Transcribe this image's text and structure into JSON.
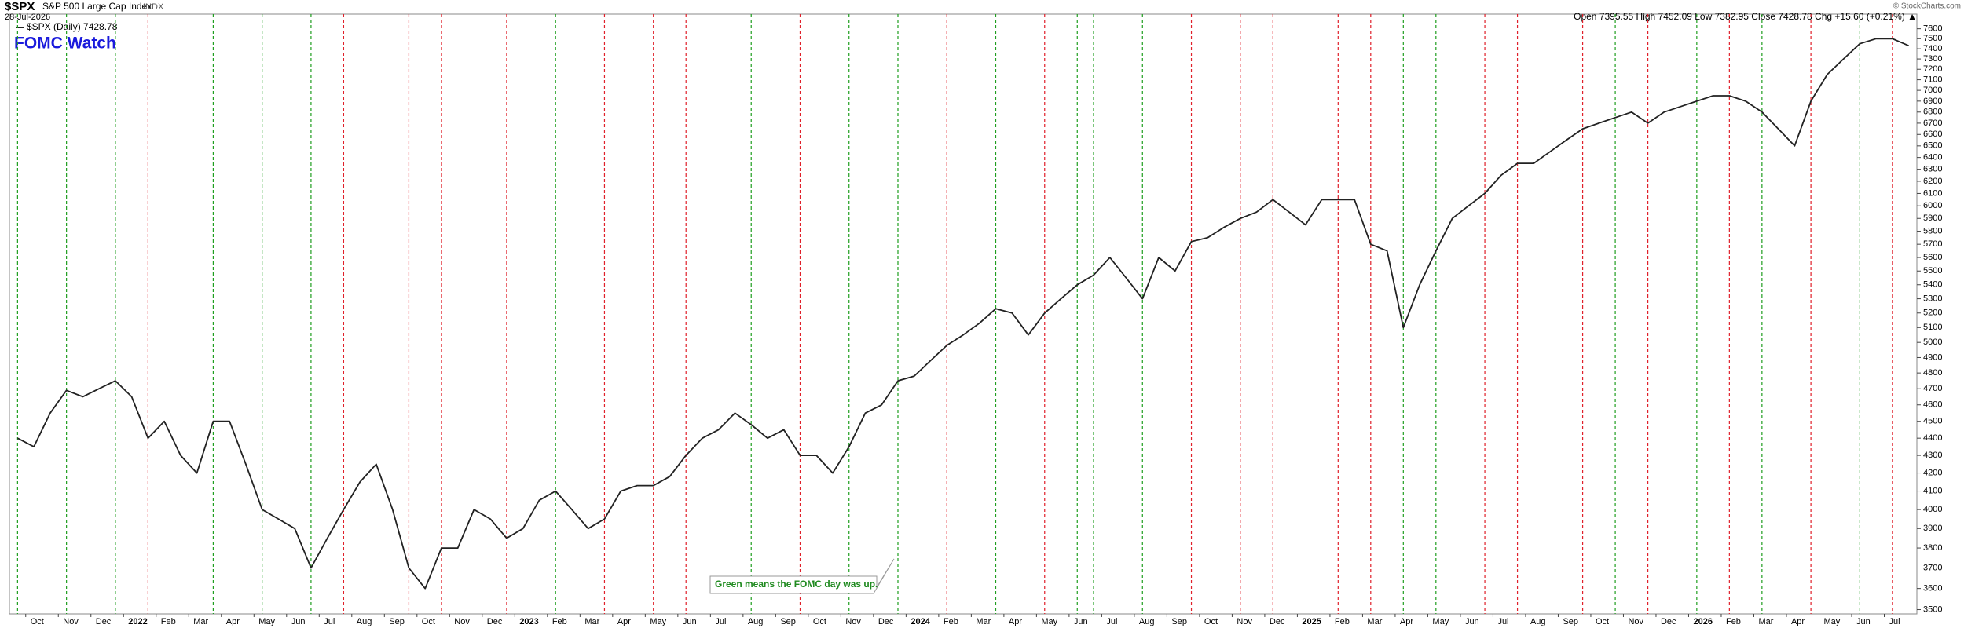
{
  "chart_data": {
    "type": "line",
    "symbol": "$SPX",
    "title": "S&P 500 Large Cap Index",
    "exchange": "INDX",
    "date": "28-Jul-2026",
    "quote": "Open 7395.55 High 7452.09 Low 7382.95 Close 7428.78 Chg +15.60 (+0.21%) ▲",
    "credit": "© StockCharts.com",
    "annotation": "FOMC Watch",
    "note": "Green means the FOMC day was up.",
    "log_scale": true,
    "categories": [
      null,
      "Oct",
      null,
      "Nov",
      null,
      "Dec",
      null,
      "2022",
      null,
      "Feb",
      null,
      "Mar",
      null,
      "Apr",
      null,
      "May",
      null,
      "Jun",
      null,
      "Jul",
      null,
      "Aug",
      null,
      "Sep",
      null,
      "Oct",
      null,
      "Nov",
      null,
      "Dec",
      null,
      "2023",
      null,
      "Feb",
      null,
      "Mar",
      null,
      "Apr",
      null,
      "May",
      null,
      "Jun",
      null,
      "Jul",
      null,
      "Aug",
      null,
      "Sep",
      null,
      "Oct",
      null,
      "Nov",
      null,
      "Dec",
      null,
      "2024",
      null,
      "Feb",
      null,
      "Mar",
      null,
      "Apr",
      null,
      "May",
      null,
      "Jun",
      null,
      "Jul",
      null,
      "Aug",
      null,
      "Sep",
      null,
      "Oct",
      null,
      "Nov",
      null,
      "Dec",
      null,
      "2025",
      null,
      "Feb",
      null,
      "Mar",
      null,
      "Apr",
      null,
      "May",
      null,
      "Jun",
      null,
      "Jul",
      null,
      "Aug",
      null,
      "Sep",
      null,
      "Oct",
      null,
      "Nov",
      null,
      "Dec",
      null,
      "2026",
      null,
      "Feb",
      null,
      "Mar",
      null,
      "Apr",
      null,
      "May",
      null,
      "Jun",
      null,
      "Jul",
      null
    ],
    "series": [
      {
        "name": "$SPX (Daily) 7428.78",
        "color": "#222222",
        "values": [
          4400,
          4350,
          4550,
          4690,
          4650,
          4700,
          4750,
          4650,
          4400,
          4500,
          4300,
          4200,
          4500,
          4500,
          4250,
          4000,
          3950,
          3900,
          3700,
          3850,
          4000,
          4150,
          4250,
          4000,
          3700,
          3600,
          3800,
          3800,
          4000,
          3950,
          3850,
          3900,
          4050,
          4100,
          4000,
          3900,
          3950,
          4100,
          4130,
          4130,
          4180,
          4300,
          4400,
          4450,
          4550,
          4480,
          4400,
          4450,
          4300,
          4300,
          4200,
          4350,
          4550,
          4600,
          4750,
          4780,
          4880,
          4980,
          5050,
          5130,
          5230,
          5200,
          5050,
          5200,
          5300,
          5400,
          5470,
          5600,
          5450,
          5300,
          5600,
          5500,
          5720,
          5750,
          5830,
          5900,
          5950,
          6050,
          5950,
          5850,
          6050,
          6050,
          6050,
          5700,
          5650,
          5100,
          5400,
          5650,
          5900,
          6000,
          6100,
          6250,
          6350,
          6350,
          6450,
          6550,
          6650,
          6700,
          6750,
          6800,
          6700,
          6800,
          6850,
          6900,
          6950,
          6950,
          6900,
          6800,
          6650,
          6500,
          6900,
          7150,
          7300,
          7450,
          7500,
          7500,
          7430
        ]
      }
    ],
    "fomc_events": [
      {
        "category": 0,
        "color": "#1f9e1f"
      },
      {
        "category": 3,
        "color": "#1f9e1f"
      },
      {
        "category": 6,
        "color": "#1f9e1f"
      },
      {
        "category": 8,
        "color": "#e0202a"
      },
      {
        "category": 12,
        "color": "#1f9e1f"
      },
      {
        "category": 15,
        "color": "#1f9e1f"
      },
      {
        "category": 18,
        "color": "#1f9e1f"
      },
      {
        "category": 20,
        "color": "#e0202a"
      },
      {
        "category": 24,
        "color": "#e0202a"
      },
      {
        "category": 26,
        "color": "#e0202a"
      },
      {
        "category": 30,
        "color": "#e0202a"
      },
      {
        "category": 33,
        "color": "#1f9e1f"
      },
      {
        "category": 36,
        "color": "#e0202a"
      },
      {
        "category": 39,
        "color": "#e0202a"
      },
      {
        "category": 41,
        "color": "#e0202a"
      },
      {
        "category": 45,
        "color": "#1f9e1f"
      },
      {
        "category": 48,
        "color": "#e0202a"
      },
      {
        "category": 51,
        "color": "#1f9e1f"
      },
      {
        "category": 54,
        "color": "#1f9e1f"
      },
      {
        "category": 57,
        "color": "#e0202a"
      },
      {
        "category": 60,
        "color": "#1f9e1f"
      },
      {
        "category": 63,
        "color": "#e0202a"
      },
      {
        "category": 65,
        "color": "#1f9e1f"
      },
      {
        "category": 66,
        "color": "#1f9e1f"
      },
      {
        "category": 69,
        "color": "#1f9e1f"
      },
      {
        "category": 72,
        "color": "#e0202a"
      },
      {
        "category": 75,
        "color": "#e0202a"
      },
      {
        "category": 77,
        "color": "#e0202a"
      },
      {
        "category": 81,
        "color": "#e0202a"
      },
      {
        "category": 83,
        "color": "#e0202a"
      },
      {
        "category": 85,
        "color": "#1f9e1f"
      },
      {
        "category": 87,
        "color": "#1f9e1f"
      },
      {
        "category": 90,
        "color": "#e0202a"
      },
      {
        "category": 92,
        "color": "#e0202a"
      },
      {
        "category": 96,
        "color": "#e0202a"
      },
      {
        "category": 98,
        "color": "#1f9e1f"
      },
      {
        "category": 100,
        "color": "#e0202a"
      },
      {
        "category": 103,
        "color": "#1f9e1f"
      },
      {
        "category": 105,
        "color": "#e0202a"
      },
      {
        "category": 107,
        "color": "#1f9e1f"
      },
      {
        "category": 110,
        "color": "#e0202a"
      },
      {
        "category": 113,
        "color": "#1f9e1f"
      },
      {
        "category": 115,
        "color": "#e0202a"
      }
    ],
    "ylim": [
      3480,
      7750
    ],
    "yticks": [
      3500,
      3600,
      3700,
      3800,
      3900,
      4000,
      4100,
      4200,
      4300,
      4400,
      4500,
      4600,
      4700,
      4800,
      4900,
      5000,
      5100,
      5200,
      5300,
      5400,
      5500,
      5600,
      5700,
      5800,
      5900,
      6000,
      6100,
      6200,
      6300,
      6400,
      6500,
      6600,
      6700,
      6800,
      6900,
      7000,
      7100,
      7200,
      7300,
      7400,
      7500,
      7600
    ]
  }
}
